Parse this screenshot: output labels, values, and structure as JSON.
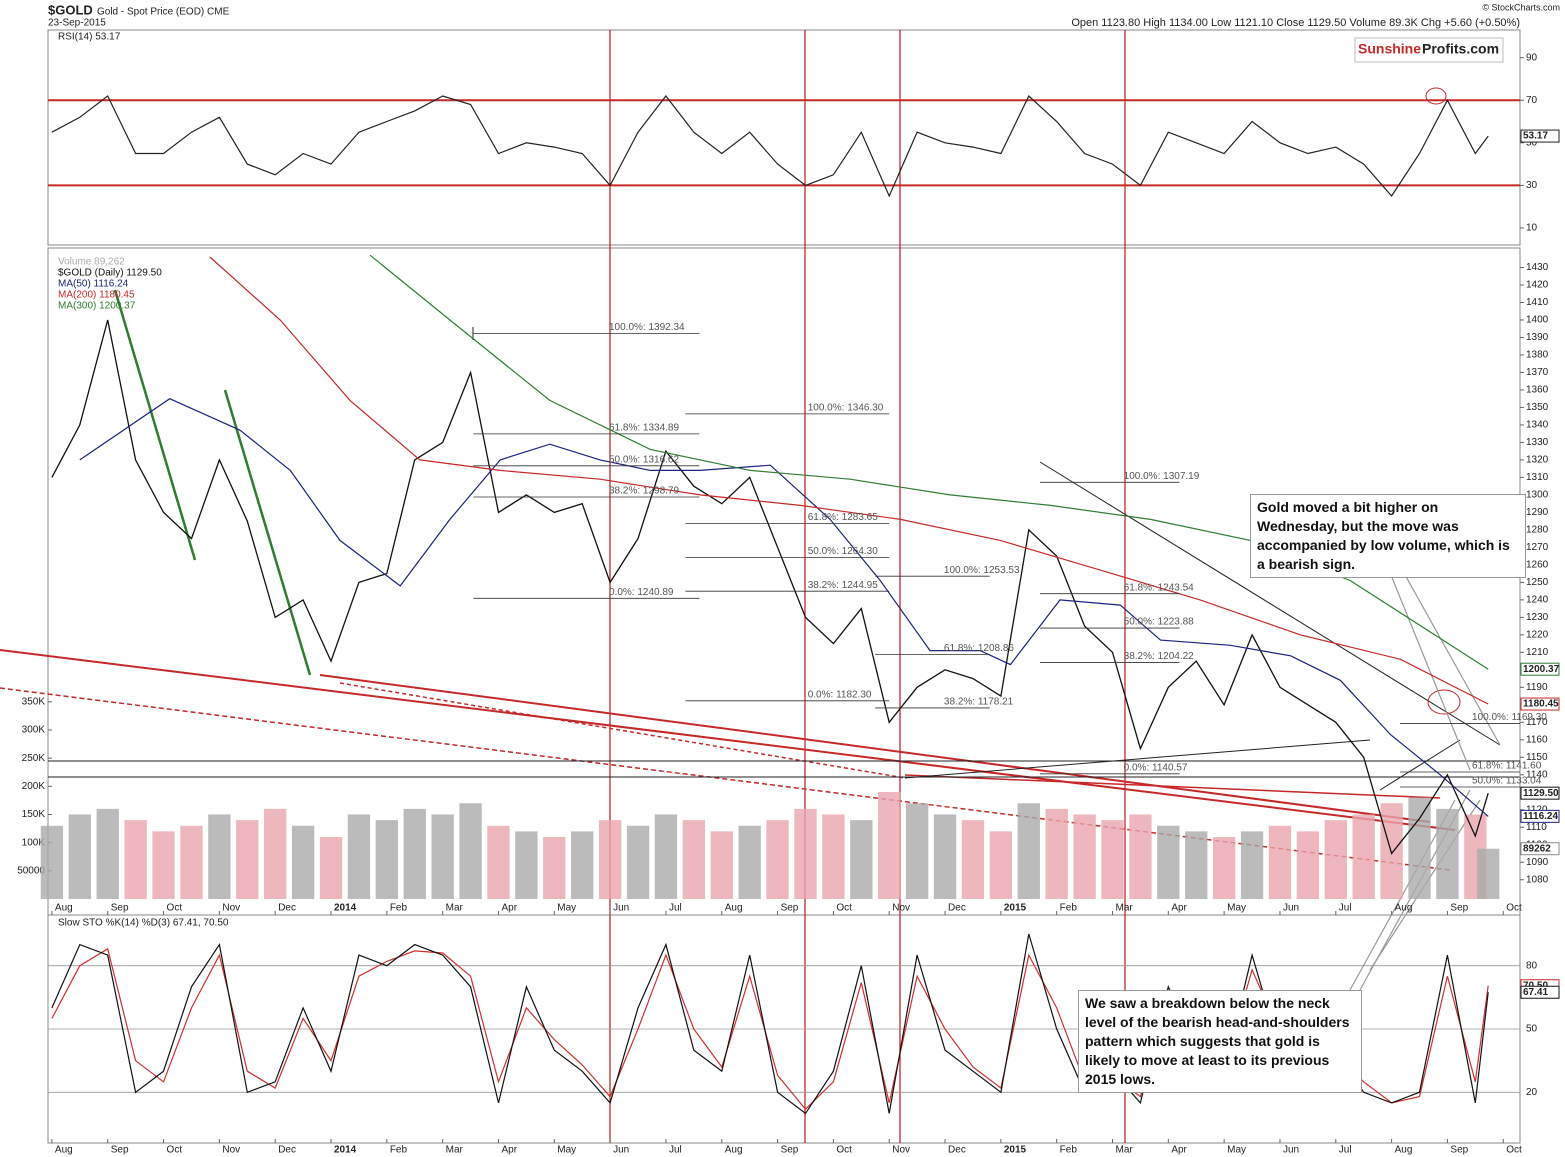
{
  "header": {
    "symbol": "$GOLD",
    "name": "Gold - Spot Price (EOD) CME",
    "date": "23-Sep-2015",
    "quote": "Open 1123.80 High 1134.00 Low 1121.10 Close 1129.50 Volume 89.3K Chg +5.60 (+0.50%)",
    "credit": "© StockCharts.com",
    "logo_a": "Sunshine",
    "logo_b": "Profits.com"
  },
  "annotations": [
    "Gold moved a bit higher on Wednesday, but the move was accompanied by low volume, which is a bearish sign.",
    "We saw a breakdown below the neck level of the bearish head-and-shoulders pattern which suggests that gold is likely to move at least to its previous 2015 lows."
  ],
  "chart_data": [
    {
      "type": "line",
      "title": "RSI(14) 53.17",
      "x": [
        0,
        0.5,
        1,
        1.5,
        2,
        2.5,
        3,
        3.5,
        4,
        4.5,
        5,
        5.5,
        6,
        6.5,
        7,
        7.5,
        8,
        8.5,
        9,
        9.5,
        10,
        10.5,
        11,
        11.5,
        12,
        12.5,
        13,
        13.5,
        14,
        14.5,
        15,
        15.5,
        16,
        16.5,
        17,
        17.5,
        18,
        18.5,
        19,
        19.5,
        20,
        20.5,
        21,
        21.5,
        22,
        22.5,
        23,
        23.5,
        24,
        24.5,
        25,
        25.5,
        25.73
      ],
      "series": [
        {
          "color": "#222222",
          "values": [
            55,
            62,
            72,
            45,
            45,
            55,
            62,
            40,
            35,
            45,
            40,
            55,
            60,
            65,
            72,
            68,
            45,
            50,
            48,
            45,
            30,
            55,
            72,
            55,
            45,
            55,
            40,
            30,
            35,
            55,
            25,
            55,
            50,
            48,
            45,
            72,
            60,
            45,
            40,
            30,
            55,
            50,
            45,
            60,
            50,
            45,
            48,
            40,
            25,
            45,
            70,
            45,
            53.17
          ]
        }
      ],
      "xlim": [
        -0.07,
        26.3
      ],
      "ylim": [
        2,
        103
      ],
      "yticks": [
        10,
        30,
        50,
        70,
        90
      ],
      "grid": false,
      "red_lines": [
        30,
        70
      ],
      "value_boxes": [
        {
          "value": 53.17,
          "label": "53.17",
          "color": "#222222"
        }
      ]
    },
    {
      "type": "line",
      "x": [
        0,
        0.5,
        1,
        1.5,
        2,
        2.5,
        3,
        3.5,
        4,
        4.5,
        5,
        5.5,
        6,
        6.5,
        7,
        7.5,
        8,
        8.5,
        9,
        9.5,
        10,
        10.5,
        11,
        11.5,
        12,
        12.5,
        13,
        13.5,
        14,
        14.5,
        15,
        15.5,
        16,
        16.5,
        17,
        17.5,
        18,
        18.5,
        19,
        19.5,
        20,
        20.5,
        21,
        21.5,
        22,
        22.5,
        23,
        23.5,
        24,
        24.5,
        25,
        25.5,
        25.73
      ],
      "series": [
        {
          "name": "Volume 89,262",
          "type": "bar",
          "axis": "y2",
          "color": "#aaaaaa",
          "down_color": "#e8a5ad",
          "values": [
            130000,
            150000,
            160000,
            140000,
            120000,
            130000,
            150000,
            140000,
            160000,
            130000,
            110000,
            150000,
            140000,
            160000,
            150000,
            170000,
            130000,
            120000,
            110000,
            120000,
            140000,
            130000,
            150000,
            140000,
            120000,
            130000,
            140000,
            160000,
            150000,
            140000,
            190000,
            170000,
            150000,
            140000,
            120000,
            170000,
            160000,
            150000,
            140000,
            150000,
            130000,
            120000,
            110000,
            120000,
            130000,
            120000,
            140000,
            150000,
            170000,
            180000,
            160000,
            150000,
            89262
          ]
        },
        {
          "name": "$GOLD (Daily) 1129.50",
          "color": "#111111",
          "values": [
            1310,
            1340,
            1400,
            1320,
            1290,
            1275,
            1320,
            1285,
            1230,
            1240,
            1205,
            1250,
            1255,
            1320,
            1330,
            1370,
            1290,
            1300,
            1290,
            1295,
            1250,
            1275,
            1325,
            1305,
            1295,
            1310,
            1270,
            1230,
            1215,
            1235,
            1170,
            1190,
            1200,
            1195,
            1185,
            1280,
            1265,
            1225,
            1210,
            1155,
            1190,
            1205,
            1180,
            1220,
            1190,
            1180,
            1170,
            1150,
            1095,
            1115,
            1140,
            1105,
            1129.5
          ]
        },
        {
          "name": "MA(50) 1116.24",
          "color": "#1a237e",
          "x": [
            0.5,
            2.11,
            3.37,
            4.27,
            5.16,
            6.24,
            7.13,
            8.03,
            8.92,
            9.82,
            10.72,
            11.61,
            12.87,
            13.94,
            14.84,
            15.73,
            16.63,
            17.17,
            18.06,
            19.14,
            19.86,
            21.11,
            22.19,
            23.08,
            23.98,
            24.87,
            25.73
          ],
          "values": [
            1320,
            1355,
            1337,
            1314,
            1274,
            1248,
            1286,
            1320,
            1329,
            1320,
            1314,
            1314,
            1317,
            1286,
            1251,
            1211,
            1211,
            1203,
            1240,
            1237,
            1217,
            1214,
            1208,
            1194,
            1163,
            1140,
            1116.24
          ]
        },
        {
          "name": "MA(200) 1180.45",
          "color": "#c62828",
          "x": [
            2.83,
            4.09,
            5.34,
            6.59,
            8.03,
            9.82,
            11.61,
            13.41,
            15.2,
            16.99,
            18.78,
            20.57,
            22.37,
            24.16,
            25.73
          ],
          "values": [
            1436,
            1400,
            1354,
            1320,
            1314,
            1309,
            1300,
            1294,
            1286,
            1274,
            1257,
            1240,
            1220,
            1206,
            1180.45
          ]
        },
        {
          "name": "MA(300) 1200.37",
          "color": "#2e7d32",
          "x": [
            5.7,
            7.13,
            8.92,
            10.72,
            12.51,
            14.3,
            16.09,
            17.89,
            19.68,
            21.47,
            23.26,
            25.73
          ],
          "values": [
            1437,
            1400,
            1354,
            1326,
            1314,
            1309,
            1300,
            1294,
            1286,
            1274,
            1251,
            1200.37
          ]
        }
      ],
      "xlim": [
        -0.07,
        26.3
      ],
      "ylim": [
        1069,
        1440
      ],
      "yticks": [
        1080,
        1090,
        1100,
        1110,
        1120,
        1130,
        1140,
        1150,
        1160,
        1170,
        1180,
        1190,
        1200,
        1210,
        1220,
        1230,
        1240,
        1250,
        1260,
        1270,
        1280,
        1290,
        1300,
        1310,
        1320,
        1330,
        1340,
        1350,
        1360,
        1370,
        1380,
        1390,
        1400,
        1410,
        1420,
        1430
      ],
      "y2lim": [
        0,
        1152000
      ],
      "y2ticks": [
        50000,
        {
          "value": 100000,
          "label": "100K"
        },
        {
          "value": 150000,
          "label": "150K"
        },
        {
          "value": 200000,
          "label": "200K"
        },
        {
          "value": 250000,
          "label": "250K"
        },
        {
          "value": 300000,
          "label": "300K"
        },
        {
          "value": 350000,
          "label": "350K"
        }
      ],
      "xticks": [
        {
          "value": 0,
          "label": "Aug"
        },
        {
          "value": 1,
          "label": "Sep"
        },
        {
          "value": 2,
          "label": "Oct"
        },
        {
          "value": 3,
          "label": "Nov"
        },
        {
          "value": 4,
          "label": "Dec"
        },
        {
          "value": 5,
          "label": "2014"
        },
        {
          "value": 6,
          "label": "Feb"
        },
        {
          "value": 7,
          "label": "Mar"
        },
        {
          "value": 8,
          "label": "Apr"
        },
        {
          "value": 9,
          "label": "May"
        },
        {
          "value": 10,
          "label": "Jun"
        },
        {
          "value": 11,
          "label": "Jul"
        },
        {
          "value": 12,
          "label": "Aug"
        },
        {
          "value": 13,
          "label": "Sep"
        },
        {
          "value": 14,
          "label": "Oct"
        },
        {
          "value": 15,
          "label": "Nov"
        },
        {
          "value": 16,
          "label": "Dec"
        },
        {
          "value": 17,
          "label": "2015"
        },
        {
          "value": 18,
          "label": "Feb"
        },
        {
          "value": 19,
          "label": "Mar"
        },
        {
          "value": 20,
          "label": "Apr"
        },
        {
          "value": 21,
          "label": "May"
        },
        {
          "value": 22,
          "label": "Jun"
        },
        {
          "value": 23,
          "label": "Jul"
        },
        {
          "value": 24,
          "label": "Aug"
        },
        {
          "value": 25,
          "label": "Sep"
        },
        {
          "value": 26,
          "label": "Oct"
        }
      ],
      "grid": false,
      "fibonacci": [
        {
          "x": [
            7.55,
            11.6
          ],
          "levels": [
            {
              "value": 1392.34,
              "label": "100.0%: 1392.34"
            },
            {
              "value": 1334.89,
              "label": "61.8%: 1334.89"
            },
            {
              "value": 1316.62,
              "label": "50.0%: 1316.62"
            },
            {
              "value": 1298.79,
              "label": "38.2%: 1298.79"
            },
            {
              "value": 1240.89,
              "label": "0.0%: 1240.89"
            }
          ]
        },
        {
          "x": [
            11.35,
            15.0
          ],
          "levels": [
            {
              "value": 1346.3,
              "label": "100.0%: 1346.30"
            },
            {
              "value": 1283.65,
              "label": "61.8%: 1283.65"
            },
            {
              "value": 1264.3,
              "label": "50.0%: 1264.30"
            },
            {
              "value": 1244.95,
              "label": "38.2%: 1244.95"
            },
            {
              "value": 1182.3,
              "label": "0.0%: 1182.30"
            }
          ]
        },
        {
          "x": [
            14.75,
            16.8
          ],
          "levels": [
            {
              "value": 1253.53,
              "label": "100.0%: 1253.53"
            },
            {
              "value": 1208.86,
              "label": "61.8%: 1208.86"
            },
            {
              "value": 1178.21,
              "label": "38.2%: 1178.21"
            }
          ]
        },
        {
          "x": [
            17.7,
            20.2
          ],
          "levels": [
            {
              "value": 1307.19,
              "label": "100.0%: 1307.19"
            },
            {
              "value": 1243.54,
              "label": "61.8%: 1243.54"
            },
            {
              "value": 1223.88,
              "label": "50.0%: 1223.88"
            },
            {
              "value": 1204.22,
              "label": "38.2%: 1204.22"
            },
            {
              "value": 1140.57,
              "label": "0.0%: 1140.57"
            }
          ]
        },
        {
          "x": [
            24.15,
            26.3
          ],
          "levels": [
            {
              "value": 1169.3,
              "label": "100.0%: 1169.30"
            },
            {
              "value": 1141.6,
              "label": "61.8%: 1141.60"
            },
            {
              "value": 1133.04,
              "label": "50.0%: 1133.04"
            }
          ]
        }
      ],
      "value_boxes": [
        {
          "value": 1200.37,
          "label": "1200.37",
          "color": "#2e7d32"
        },
        {
          "value": 1180.45,
          "label": "1180.45",
          "color": "#c62828"
        },
        {
          "value": 1129.5,
          "label": "1129.50",
          "color": "#111111"
        },
        {
          "value": 1116.24,
          "label": "1116.24",
          "color": "#1a237e"
        },
        {
          "value": 89262,
          "label": "89262",
          "color": "#888888",
          "axis": "y2"
        }
      ]
    },
    {
      "type": "line",
      "title": "Slow STO %K(14) %D(3) 67.41, 70.50",
      "x": [
        0,
        0.5,
        1,
        1.5,
        2,
        2.5,
        3,
        3.5,
        4,
        4.5,
        5,
        5.5,
        6,
        6.5,
        7,
        7.5,
        8,
        8.5,
        9,
        9.5,
        10,
        10.5,
        11,
        11.5,
        12,
        12.5,
        13,
        13.5,
        14,
        14.5,
        15,
        15.5,
        16,
        16.5,
        17,
        17.5,
        18,
        18.5,
        19,
        19.5,
        20,
        20.5,
        21,
        21.5,
        22,
        22.5,
        23,
        23.5,
        24,
        24.5,
        25,
        25.5,
        25.73
      ],
      "series": [
        {
          "color": "#d32f2f",
          "values": [
            55,
            80,
            88,
            35,
            25,
            60,
            85,
            30,
            22,
            55,
            35,
            75,
            82,
            87,
            86,
            75,
            25,
            60,
            45,
            33,
            18,
            50,
            85,
            50,
            32,
            75,
            28,
            12,
            25,
            72,
            15,
            75,
            50,
            32,
            22,
            85,
            60,
            25,
            28,
            18,
            60,
            45,
            32,
            78,
            48,
            32,
            38,
            25,
            15,
            18,
            75,
            25,
            70.5
          ]
        },
        {
          "color": "#111111",
          "values": [
            60,
            90,
            85,
            20,
            30,
            70,
            90,
            20,
            25,
            60,
            30,
            85,
            80,
            90,
            85,
            70,
            15,
            70,
            40,
            30,
            15,
            60,
            90,
            40,
            30,
            85,
            20,
            10,
            30,
            80,
            10,
            85,
            40,
            30,
            20,
            95,
            50,
            20,
            30,
            15,
            70,
            40,
            30,
            85,
            40,
            30,
            40,
            20,
            15,
            20,
            85,
            15,
            67.41
          ]
        }
      ],
      "xlim": [
        -0.07,
        26.3
      ],
      "ylim": [
        -4,
        104
      ],
      "yticks": [
        20,
        50,
        80
      ],
      "grid": true,
      "xticks": [
        {
          "value": 0,
          "label": "Aug"
        },
        {
          "value": 1,
          "label": "Sep"
        },
        {
          "value": 2,
          "label": "Oct"
        },
        {
          "value": 3,
          "label": "Nov"
        },
        {
          "value": 4,
          "label": "Dec"
        },
        {
          "value": 5,
          "label": "2014"
        },
        {
          "value": 6,
          "label": "Feb"
        },
        {
          "value": 7,
          "label": "Mar"
        },
        {
          "value": 8,
          "label": "Apr"
        },
        {
          "value": 9,
          "label": "May"
        },
        {
          "value": 10,
          "label": "Jun"
        },
        {
          "value": 11,
          "label": "Jul"
        },
        {
          "value": 12,
          "label": "Aug"
        },
        {
          "value": 13,
          "label": "Sep"
        },
        {
          "value": 14,
          "label": "Oct"
        },
        {
          "value": 15,
          "label": "Nov"
        },
        {
          "value": 16,
          "label": "Dec"
        },
        {
          "value": 17,
          "label": "2015"
        },
        {
          "value": 18,
          "label": "Feb"
        },
        {
          "value": 19,
          "label": "Mar"
        },
        {
          "value": 20,
          "label": "Apr"
        },
        {
          "value": 21,
          "label": "May"
        },
        {
          "value": 22,
          "label": "Jun"
        },
        {
          "value": 23,
          "label": "Jul"
        },
        {
          "value": 24,
          "label": "Aug"
        },
        {
          "value": 25,
          "label": "Sep"
        },
        {
          "value": 26,
          "label": "Oct"
        }
      ],
      "value_boxes": [
        {
          "value": 70.5,
          "label": "70.50",
          "color": "#d32f2f"
        },
        {
          "value": 67.41,
          "label": "67.41",
          "color": "#111111"
        }
      ]
    }
  ]
}
